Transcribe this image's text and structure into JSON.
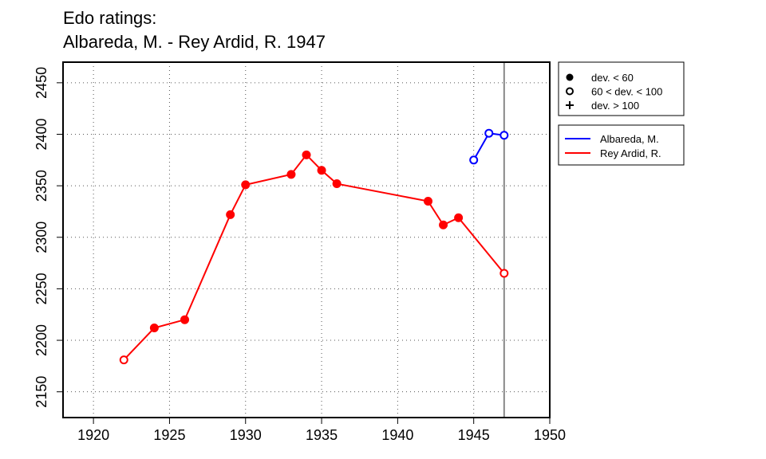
{
  "chart_data": {
    "type": "line",
    "title_line1": "Edo ratings:",
    "title_line2": "Albareda, M. - Rey Ardid, R. 1947",
    "xlabel": "",
    "ylabel": "",
    "xlim": [
      1918,
      1950
    ],
    "ylim": [
      2125,
      2470
    ],
    "x_ticks": [
      "1920",
      "1925",
      "1930",
      "1935",
      "1940",
      "1945",
      "1950"
    ],
    "y_ticks": [
      "2150",
      "2200",
      "2250",
      "2300",
      "2350",
      "2400",
      "2450"
    ],
    "grid": true,
    "marker_line_year": 1947,
    "deviation_legend": [
      {
        "marker": "filled-circle",
        "label": "dev. < 60"
      },
      {
        "marker": "open-circle",
        "label": "60 < dev. < 100"
      },
      {
        "marker": "plus",
        "label": "dev. > 100"
      }
    ],
    "series": [
      {
        "name": "Albareda, M.",
        "color": "#0000ff",
        "points": [
          {
            "x": 1945,
            "y": 2375,
            "marker": "open-circle"
          },
          {
            "x": 1946,
            "y": 2401,
            "marker": "open-circle"
          },
          {
            "x": 1947,
            "y": 2399,
            "marker": "open-circle"
          }
        ]
      },
      {
        "name": "Rey Ardid, R.",
        "color": "#ff0000",
        "points": [
          {
            "x": 1922,
            "y": 2181,
            "marker": "open-circle"
          },
          {
            "x": 1924,
            "y": 2212,
            "marker": "filled-circle"
          },
          {
            "x": 1926,
            "y": 2220,
            "marker": "filled-circle"
          },
          {
            "x": 1929,
            "y": 2322,
            "marker": "filled-circle"
          },
          {
            "x": 1930,
            "y": 2351,
            "marker": "filled-circle"
          },
          {
            "x": 1933,
            "y": 2361,
            "marker": "filled-circle"
          },
          {
            "x": 1934,
            "y": 2380,
            "marker": "filled-circle"
          },
          {
            "x": 1935,
            "y": 2365,
            "marker": "filled-circle"
          },
          {
            "x": 1936,
            "y": 2352,
            "marker": "filled-circle"
          },
          {
            "x": 1942,
            "y": 2335,
            "marker": "filled-circle"
          },
          {
            "x": 1943,
            "y": 2312,
            "marker": "filled-circle"
          },
          {
            "x": 1944,
            "y": 2319,
            "marker": "filled-circle"
          },
          {
            "x": 1947,
            "y": 2265,
            "marker": "open-circle"
          }
        ]
      }
    ]
  }
}
